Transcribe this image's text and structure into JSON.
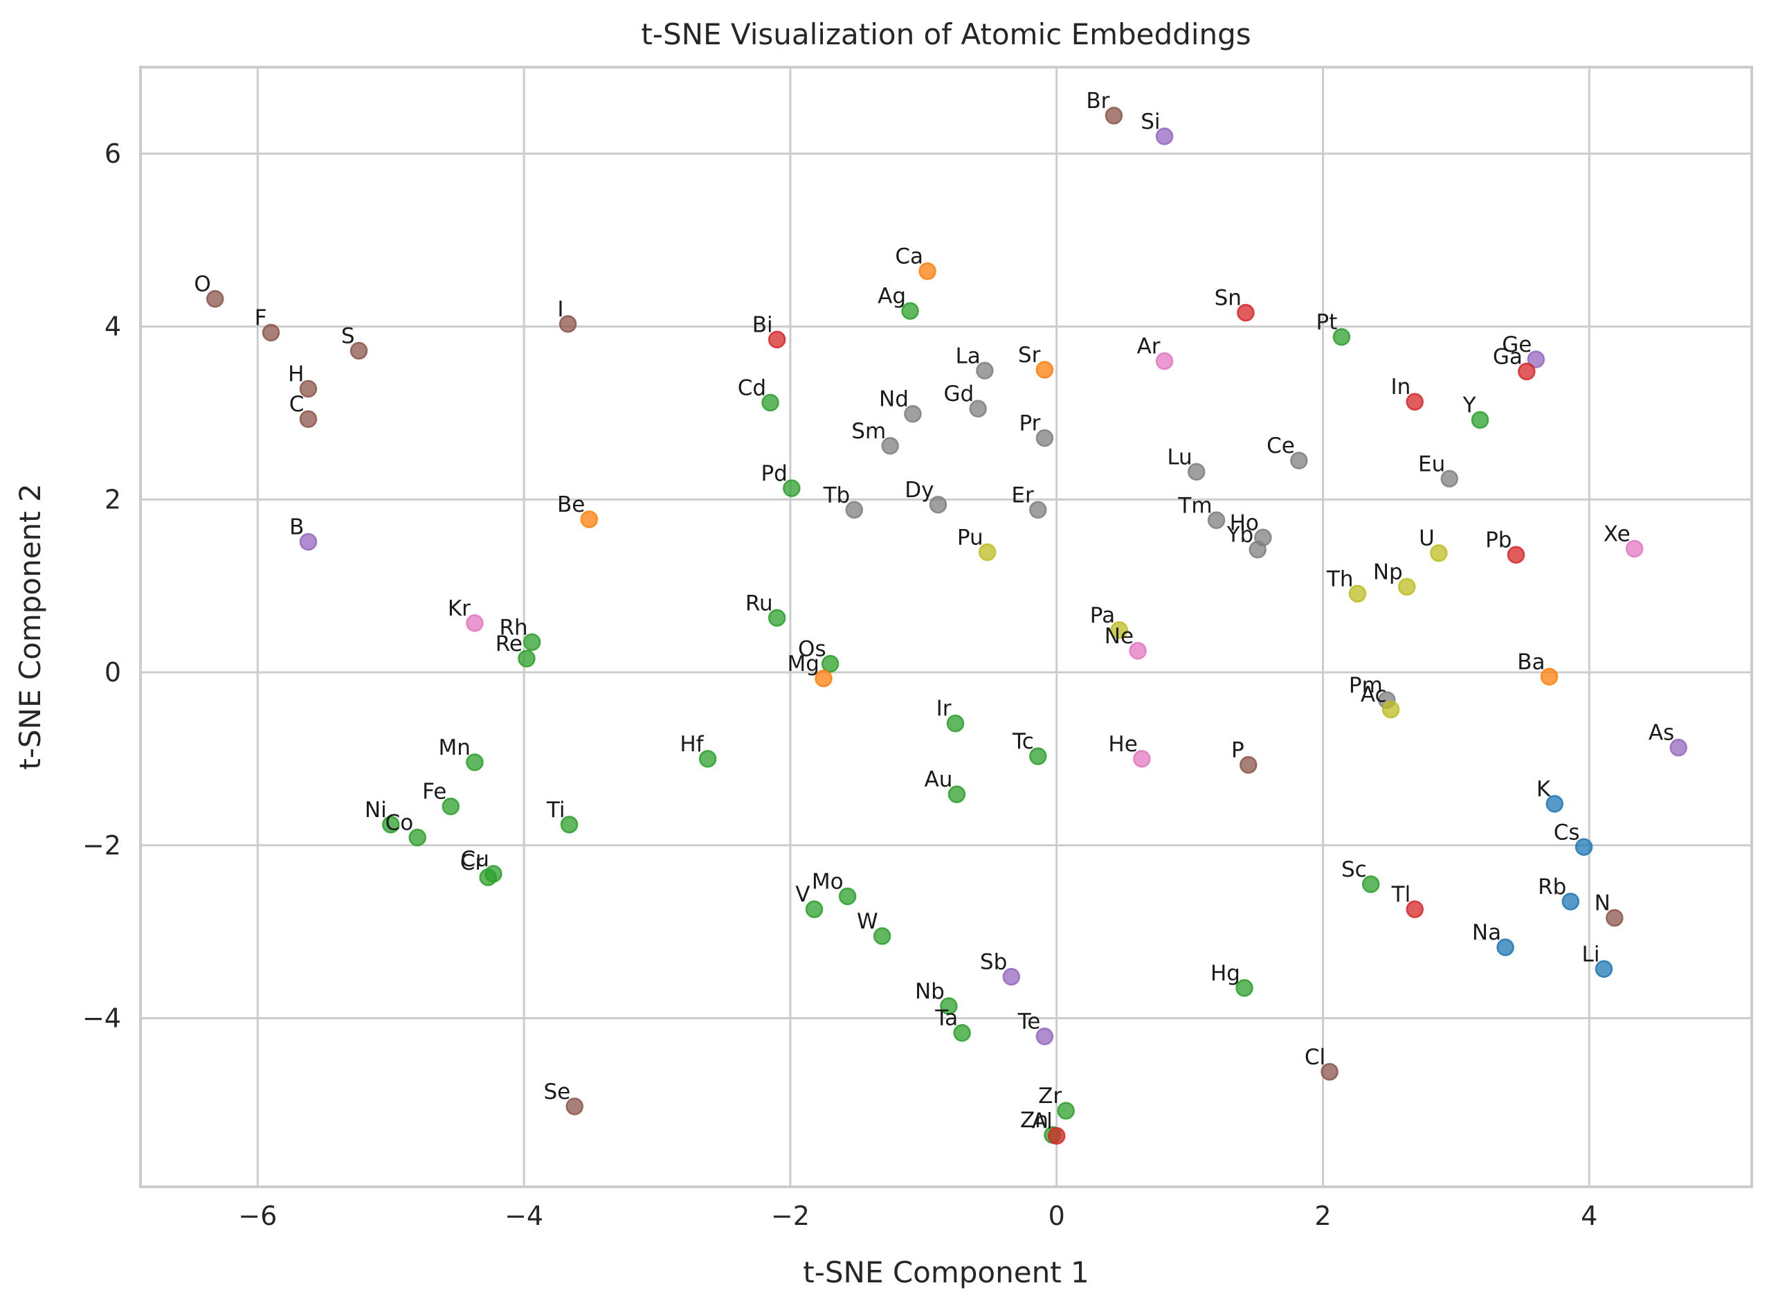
{
  "chart_data": {
    "type": "scatter",
    "title": "t-SNE Visualization of Atomic Embeddings",
    "xlabel": "t-SNE Component 1",
    "ylabel": "t-SNE Component 2",
    "xlim": [
      -6.88,
      5.22
    ],
    "ylim": [
      -5.95,
      7.0
    ],
    "xticks": [
      -6,
      -4,
      -2,
      0,
      2,
      4
    ],
    "yticks": [
      -4,
      -2,
      0,
      2,
      4,
      6
    ],
    "xtick_labels": [
      "−6",
      "−4",
      "−2",
      "0",
      "2",
      "4"
    ],
    "ytick_labels": [
      "−4",
      "−2",
      "0",
      "2",
      "4",
      "6"
    ],
    "grid": true,
    "legend": "none",
    "colors": {
      "blue": "#1f77b4",
      "orange": "#ff7f0e",
      "green": "#2ca02c",
      "red": "#d62728",
      "purple": "#9467bd",
      "brown": "#8c564b",
      "pink": "#e377c2",
      "gray": "#7f7f7f",
      "olive": "#bcbd22"
    },
    "points": [
      {
        "label": "O",
        "x": -6.32,
        "y": 4.32,
        "color": "brown"
      },
      {
        "label": "F",
        "x": -5.9,
        "y": 3.93,
        "color": "brown"
      },
      {
        "label": "S",
        "x": -5.24,
        "y": 3.72,
        "color": "brown"
      },
      {
        "label": "H",
        "x": -5.62,
        "y": 3.28,
        "color": "brown"
      },
      {
        "label": "C",
        "x": -5.62,
        "y": 2.93,
        "color": "brown"
      },
      {
        "label": "B",
        "x": -5.62,
        "y": 1.51,
        "color": "purple"
      },
      {
        "label": "I",
        "x": -3.67,
        "y": 4.03,
        "color": "brown"
      },
      {
        "label": "Br",
        "x": 0.43,
        "y": 6.44,
        "color": "brown"
      },
      {
        "label": "Si",
        "x": 0.81,
        "y": 6.2,
        "color": "purple"
      },
      {
        "label": "Ca",
        "x": -0.97,
        "y": 4.64,
        "color": "orange"
      },
      {
        "label": "Ag",
        "x": -1.1,
        "y": 4.18,
        "color": "green"
      },
      {
        "label": "Bi",
        "x": -2.1,
        "y": 3.85,
        "color": "red"
      },
      {
        "label": "Sn",
        "x": 1.42,
        "y": 4.16,
        "color": "red"
      },
      {
        "label": "Pt",
        "x": 2.14,
        "y": 3.88,
        "color": "green"
      },
      {
        "label": "Ge",
        "x": 3.6,
        "y": 3.62,
        "color": "purple"
      },
      {
        "label": "Ga",
        "x": 3.53,
        "y": 3.48,
        "color": "red"
      },
      {
        "label": "La",
        "x": -0.54,
        "y": 3.49,
        "color": "gray"
      },
      {
        "label": "Sr",
        "x": -0.09,
        "y": 3.5,
        "color": "orange"
      },
      {
        "label": "Ar",
        "x": 0.81,
        "y": 3.6,
        "color": "pink"
      },
      {
        "label": "Cd",
        "x": -2.15,
        "y": 3.12,
        "color": "green"
      },
      {
        "label": "Nd",
        "x": -1.08,
        "y": 2.99,
        "color": "gray"
      },
      {
        "label": "Gd",
        "x": -0.59,
        "y": 3.05,
        "color": "gray"
      },
      {
        "label": "Pr",
        "x": -0.09,
        "y": 2.71,
        "color": "gray"
      },
      {
        "label": "In",
        "x": 2.69,
        "y": 3.13,
        "color": "red"
      },
      {
        "label": "Y",
        "x": 3.18,
        "y": 2.92,
        "color": "green"
      },
      {
        "label": "Sm",
        "x": -1.25,
        "y": 2.62,
        "color": "gray"
      },
      {
        "label": "Lu",
        "x": 1.05,
        "y": 2.32,
        "color": "gray"
      },
      {
        "label": "Ce",
        "x": 1.82,
        "y": 2.45,
        "color": "gray"
      },
      {
        "label": "Eu",
        "x": 2.95,
        "y": 2.24,
        "color": "gray"
      },
      {
        "label": "Pd",
        "x": -1.99,
        "y": 2.13,
        "color": "green"
      },
      {
        "label": "Tb",
        "x": -1.52,
        "y": 1.88,
        "color": "gray"
      },
      {
        "label": "Dy",
        "x": -0.89,
        "y": 1.94,
        "color": "gray"
      },
      {
        "label": "Er",
        "x": -0.14,
        "y": 1.88,
        "color": "gray"
      },
      {
        "label": "Be",
        "x": -3.51,
        "y": 1.77,
        "color": "orange"
      },
      {
        "label": "Tm",
        "x": 1.2,
        "y": 1.76,
        "color": "gray"
      },
      {
        "label": "Ho",
        "x": 1.55,
        "y": 1.56,
        "color": "gray"
      },
      {
        "label": "Yb",
        "x": 1.51,
        "y": 1.42,
        "color": "gray"
      },
      {
        "label": "Pu",
        "x": -0.52,
        "y": 1.39,
        "color": "olive"
      },
      {
        "label": "U",
        "x": 2.87,
        "y": 1.38,
        "color": "olive"
      },
      {
        "label": "Pb",
        "x": 3.45,
        "y": 1.36,
        "color": "red"
      },
      {
        "label": "Xe",
        "x": 4.34,
        "y": 1.43,
        "color": "pink"
      },
      {
        "label": "Th",
        "x": 2.26,
        "y": 0.91,
        "color": "olive"
      },
      {
        "label": "Np",
        "x": 2.63,
        "y": 0.99,
        "color": "olive"
      },
      {
        "label": "Kr",
        "x": -4.37,
        "y": 0.57,
        "color": "pink"
      },
      {
        "label": "Rh",
        "x": -3.94,
        "y": 0.35,
        "color": "green"
      },
      {
        "label": "Re",
        "x": -3.98,
        "y": 0.16,
        "color": "green"
      },
      {
        "label": "Ru",
        "x": -2.1,
        "y": 0.63,
        "color": "green"
      },
      {
        "label": "Os",
        "x": -1.7,
        "y": 0.1,
        "color": "green"
      },
      {
        "label": "Mg",
        "x": -1.75,
        "y": -0.07,
        "color": "orange"
      },
      {
        "label": "Pa",
        "x": 0.47,
        "y": 0.49,
        "color": "olive"
      },
      {
        "label": "Ne",
        "x": 0.61,
        "y": 0.25,
        "color": "pink"
      },
      {
        "label": "Pm",
        "x": 2.48,
        "y": -0.32,
        "color": "gray"
      },
      {
        "label": "Ac",
        "x": 2.51,
        "y": -0.43,
        "color": "olive"
      },
      {
        "label": "Ba",
        "x": 3.7,
        "y": -0.05,
        "color": "orange"
      },
      {
        "label": "Ir",
        "x": -0.76,
        "y": -0.59,
        "color": "green"
      },
      {
        "label": "Tc",
        "x": -0.14,
        "y": -0.97,
        "color": "green"
      },
      {
        "label": "He",
        "x": 0.64,
        "y": -1.0,
        "color": "pink"
      },
      {
        "label": "P",
        "x": 1.44,
        "y": -1.07,
        "color": "brown"
      },
      {
        "label": "As",
        "x": 4.67,
        "y": -0.87,
        "color": "purple"
      },
      {
        "label": "Mn",
        "x": -4.37,
        "y": -1.04,
        "color": "green"
      },
      {
        "label": "Hf",
        "x": -2.62,
        "y": -1.0,
        "color": "green"
      },
      {
        "label": "Au",
        "x": -0.75,
        "y": -1.41,
        "color": "green"
      },
      {
        "label": "K",
        "x": 3.74,
        "y": -1.52,
        "color": "blue"
      },
      {
        "label": "Fe",
        "x": -4.55,
        "y": -1.55,
        "color": "green"
      },
      {
        "label": "Ti",
        "x": -3.66,
        "y": -1.76,
        "color": "green"
      },
      {
        "label": "Ni",
        "x": -5.0,
        "y": -1.76,
        "color": "green"
      },
      {
        "label": "Co",
        "x": -4.8,
        "y": -1.91,
        "color": "green"
      },
      {
        "label": "Cs",
        "x": 3.96,
        "y": -2.02,
        "color": "blue"
      },
      {
        "label": "Cu",
        "x": -4.23,
        "y": -2.33,
        "color": "green"
      },
      {
        "label": "Cr",
        "x": -4.27,
        "y": -2.37,
        "color": "green"
      },
      {
        "label": "Mo",
        "x": -1.57,
        "y": -2.59,
        "color": "green"
      },
      {
        "label": "V",
        "x": -1.82,
        "y": -2.74,
        "color": "green"
      },
      {
        "label": "Sc",
        "x": 2.36,
        "y": -2.45,
        "color": "green"
      },
      {
        "label": "Tl",
        "x": 2.69,
        "y": -2.74,
        "color": "red"
      },
      {
        "label": "Rb",
        "x": 3.86,
        "y": -2.65,
        "color": "blue"
      },
      {
        "label": "N",
        "x": 4.19,
        "y": -2.84,
        "color": "brown"
      },
      {
        "label": "W",
        "x": -1.31,
        "y": -3.05,
        "color": "green"
      },
      {
        "label": "Na",
        "x": 3.37,
        "y": -3.18,
        "color": "blue"
      },
      {
        "label": "Li",
        "x": 4.11,
        "y": -3.43,
        "color": "blue"
      },
      {
        "label": "Sb",
        "x": -0.34,
        "y": -3.52,
        "color": "purple"
      },
      {
        "label": "Hg",
        "x": 1.41,
        "y": -3.65,
        "color": "green"
      },
      {
        "label": "Nb",
        "x": -0.81,
        "y": -3.86,
        "color": "green"
      },
      {
        "label": "Ta",
        "x": -0.71,
        "y": -4.17,
        "color": "green"
      },
      {
        "label": "Te",
        "x": -0.09,
        "y": -4.21,
        "color": "purple"
      },
      {
        "label": "Cl",
        "x": 2.05,
        "y": -4.62,
        "color": "brown"
      },
      {
        "label": "Se",
        "x": -3.62,
        "y": -5.02,
        "color": "brown"
      },
      {
        "label": "Zr",
        "x": 0.07,
        "y": -5.07,
        "color": "green"
      },
      {
        "label": "Zn",
        "x": -0.03,
        "y": -5.35,
        "color": "green"
      },
      {
        "label": "Al",
        "x": 0.0,
        "y": -5.36,
        "color": "red"
      }
    ]
  }
}
